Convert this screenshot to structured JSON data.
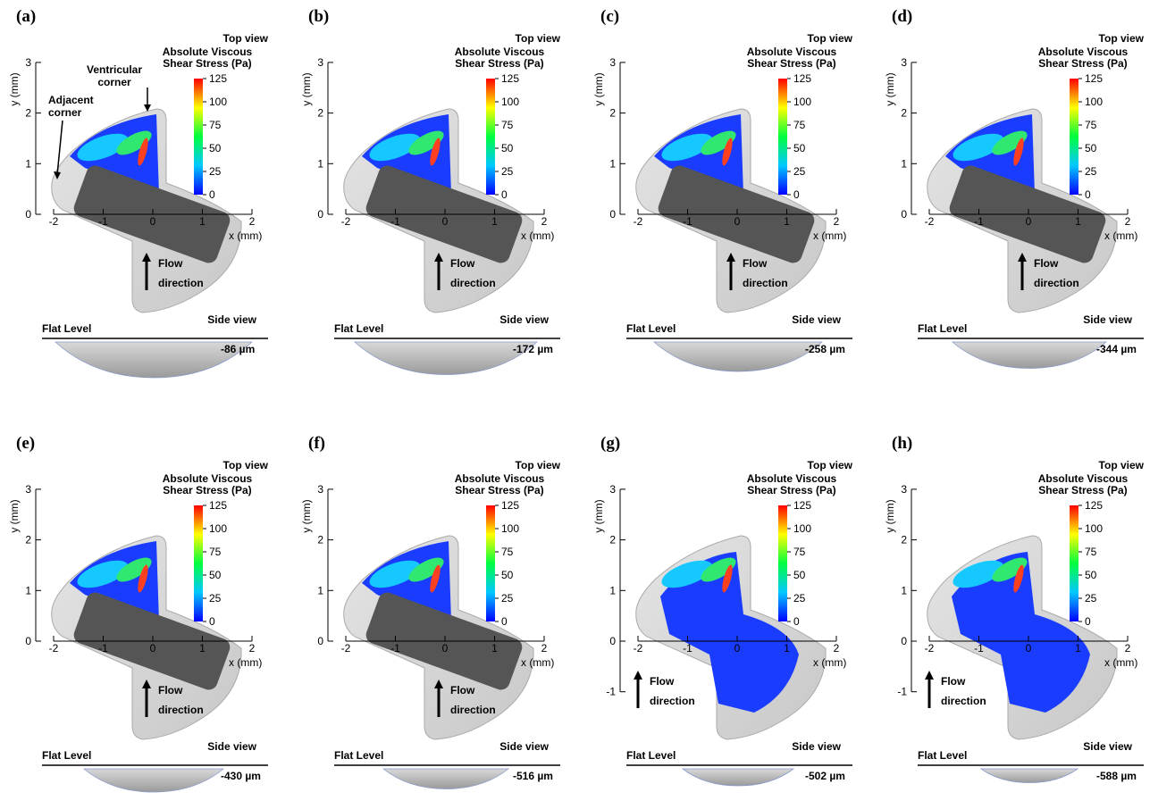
{
  "panels": [
    {
      "label": "(a)",
      "depth": "-86 µm",
      "xticks": [
        -2,
        -1,
        0,
        1,
        2
      ],
      "yticks": [
        0,
        1,
        2,
        3
      ]
    },
    {
      "label": "(b)",
      "depth": "-172 µm",
      "xticks": [
        -2,
        -1,
        0,
        1,
        2
      ],
      "yticks": [
        0,
        1,
        2,
        3
      ]
    },
    {
      "label": "(c)",
      "depth": "-258 µm",
      "xticks": [
        -2,
        -1,
        0,
        1,
        2
      ],
      "yticks": [
        0,
        1,
        2,
        3
      ]
    },
    {
      "label": "(d)",
      "depth": "-344 µm",
      "xticks": [
        -2,
        -1,
        0,
        1,
        2
      ],
      "yticks": [
        0,
        1,
        2,
        3
      ]
    },
    {
      "label": "(e)",
      "depth": "-430 µm",
      "xticks": [
        -2,
        -1,
        0,
        1,
        2
      ],
      "yticks": [
        0,
        1,
        2,
        3
      ]
    },
    {
      "label": "(f)",
      "depth": "-516 µm",
      "xticks": [
        -2,
        -1,
        0,
        1,
        2
      ],
      "yticks": [
        0,
        1,
        2,
        3
      ]
    },
    {
      "label": "(g)",
      "depth": "-502 µm",
      "xticks": [
        -2,
        -1,
        0,
        1,
        2
      ],
      "yticks": [
        -1,
        0,
        1,
        2,
        3
      ]
    },
    {
      "label": "(h)",
      "depth": "-588 µm",
      "xticks": [
        -2,
        -1,
        0,
        1,
        2
      ],
      "yticks": [
        -1,
        0,
        1,
        2,
        3
      ]
    }
  ],
  "top_view": "Top view",
  "colorbar_title": [
    "Absolute Viscous",
    "Shear Stress (Pa)"
  ],
  "colorbar_ticks": [
    0,
    25,
    50,
    75,
    100,
    125
  ],
  "x_label": "x (mm)",
  "y_label": "y (mm)",
  "flow_label": [
    "Flow",
    "direction"
  ],
  "side_view": "Side view",
  "flat_level": "Flat Level",
  "annotations": {
    "ventricular": [
      "Ventricular",
      "corner"
    ],
    "adjacent": [
      "Adjacent",
      "corner"
    ]
  }
}
